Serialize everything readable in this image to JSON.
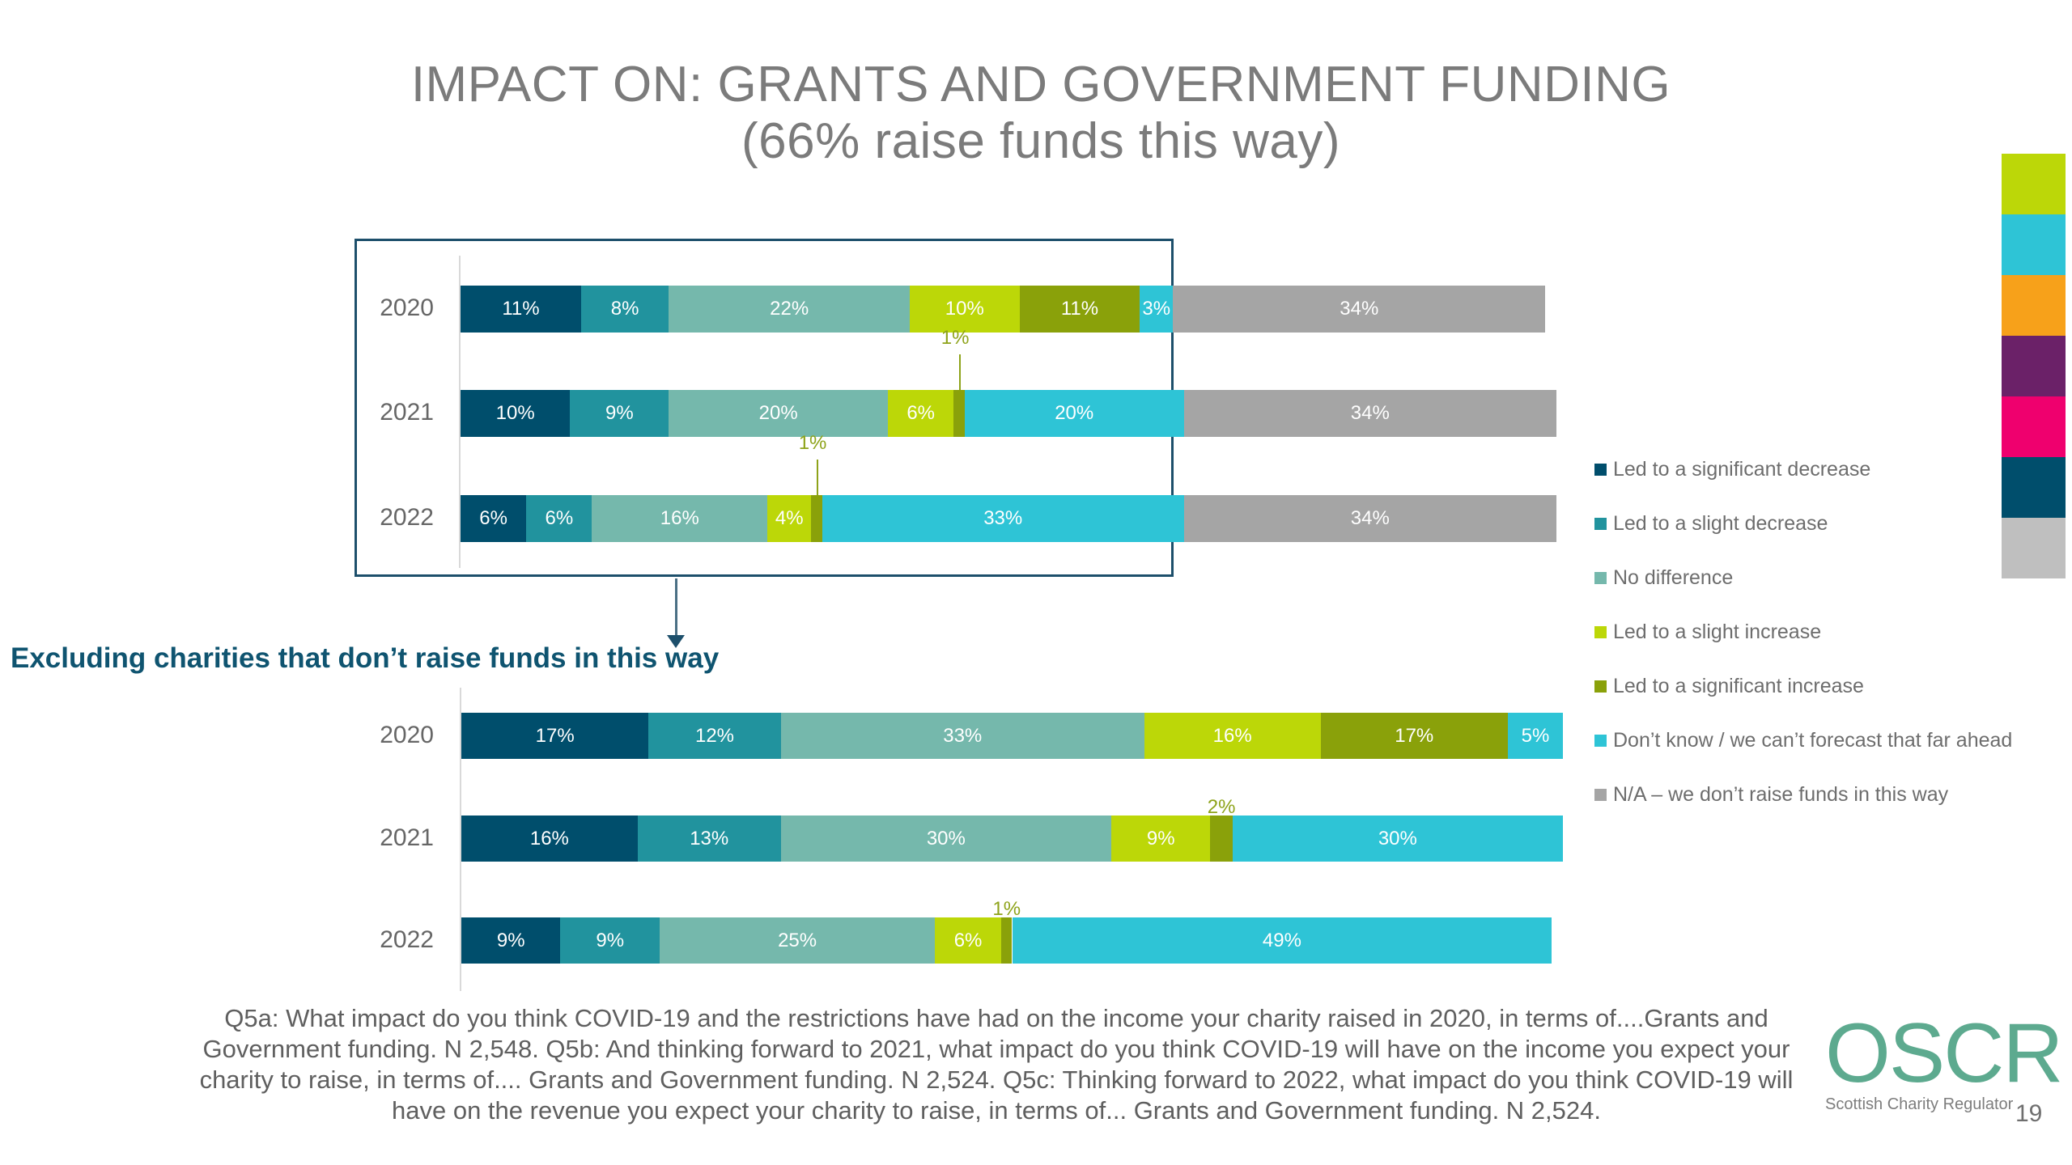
{
  "title": {
    "line1": "IMPACT ON: GRANTS AND GOVERNMENT FUNDING",
    "line2": "(66% raise funds this way)"
  },
  "subheading": "Excluding charities that don’t raise funds in this way",
  "legend": [
    {
      "label": "Led to a significant decrease",
      "color": "#004e6c"
    },
    {
      "label": "Led to a slight decrease",
      "color": "#21939e"
    },
    {
      "label": "No difference",
      "color": "#75b8ac"
    },
    {
      "label": "Led to a slight increase",
      "color": "#bcd708"
    },
    {
      "label": "Led to a significant increase",
      "color": "#8aa10a"
    },
    {
      "label": "Don’t know / we can’t forecast that far ahead",
      "color": "#2ec4d6"
    },
    {
      "label": "N/A – we don’t raise funds in this way",
      "color": "#a5a5a5"
    }
  ],
  "brand_strip": [
    "#bcd708",
    "#2ec4d6",
    "#f7a11a",
    "#6b2168",
    "#ef006e",
    "#004e6c",
    "#bfbfbf"
  ],
  "chart_data": [
    {
      "type": "bar",
      "orientation": "horizontal",
      "stacked": "100%",
      "title": "All charities",
      "categories": [
        "2020",
        "2021",
        "2022"
      ],
      "series": [
        {
          "name": "Led to a significant decrease",
          "values": [
            11,
            10,
            6
          ],
          "labels": [
            "11%",
            "10%",
            "6%"
          ]
        },
        {
          "name": "Led to a slight decrease",
          "values": [
            8,
            9,
            6
          ],
          "labels": [
            "8%",
            "9%",
            "6%"
          ]
        },
        {
          "name": "No difference",
          "values": [
            22,
            20,
            16
          ],
          "labels": [
            "22%",
            "20%",
            "16%"
          ]
        },
        {
          "name": "Led to a slight increase",
          "values": [
            10,
            6,
            4
          ],
          "labels": [
            "10%",
            "6%",
            "4%"
          ]
        },
        {
          "name": "Led to a significant increase",
          "values": [
            11,
            1,
            1
          ],
          "labels": [
            "11%",
            "1%",
            "1%"
          ],
          "callout": [
            false,
            true,
            true
          ]
        },
        {
          "name": "Don’t know / we can’t forecast that far ahead",
          "values": [
            3,
            20,
            33
          ],
          "labels": [
            "3%",
            "20%",
            "33%"
          ]
        },
        {
          "name": "N/A – we don’t raise funds in this way",
          "values": [
            34,
            34,
            34
          ],
          "labels": [
            "34%",
            "34%",
            "34%"
          ]
        }
      ],
      "xlim": [
        0,
        100
      ],
      "grid": false,
      "legend": "right"
    },
    {
      "type": "bar",
      "orientation": "horizontal",
      "stacked": "100%",
      "title": "Excluding charities that don’t raise funds in this way",
      "categories": [
        "2020",
        "2021",
        "2022"
      ],
      "series": [
        {
          "name": "Led to a significant decrease",
          "values": [
            17,
            16,
            9
          ],
          "labels": [
            "17%",
            "16%",
            "9%"
          ]
        },
        {
          "name": "Led to a slight decrease",
          "values": [
            12,
            13,
            9
          ],
          "labels": [
            "12%",
            "13%",
            "9%"
          ]
        },
        {
          "name": "No difference",
          "values": [
            33,
            30,
            25
          ],
          "labels": [
            "33%",
            "30%",
            "25%"
          ]
        },
        {
          "name": "Led to a slight increase",
          "values": [
            16,
            9,
            6
          ],
          "labels": [
            "16%",
            "9%",
            "6%"
          ]
        },
        {
          "name": "Led to a significant increase",
          "values": [
            17,
            2,
            1
          ],
          "labels": [
            "17%",
            "2%",
            "1%"
          ],
          "callout": [
            false,
            true,
            true
          ]
        },
        {
          "name": "Don’t know / we can’t forecast that far ahead",
          "values": [
            5,
            30,
            49
          ],
          "labels": [
            "5%",
            "30%",
            "49%"
          ]
        }
      ],
      "xlim": [
        0,
        100
      ],
      "grid": false,
      "legend": "right"
    }
  ],
  "footer": {
    "note": "Q5a: What impact do you think COVID-19 and the restrictions have had on the income your charity raised in 2020, in terms of....Grants and Government funding. N 2,548. Q5b: And thinking forward to 2021, what impact do you think COVID-19 will have on the income you expect your charity to raise, in terms of.... Grants and Government funding. N 2,524. Q5c: Thinking forward to 2022, what impact do you think COVID-19 will have on the revenue you expect your charity to raise, in terms of... Grants and Government funding. N 2,524."
  },
  "logo": {
    "mark": "OSCR",
    "subtitle": "Scottish Charity Regulator"
  },
  "page_number": "19"
}
